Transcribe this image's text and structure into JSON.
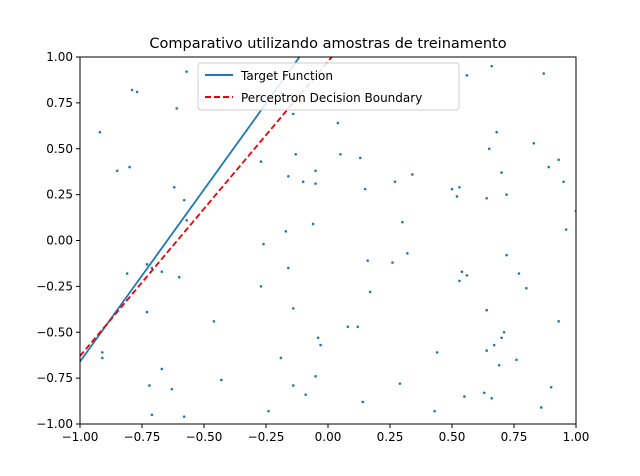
{
  "chart_data": {
    "type": "scatter",
    "title": "Comparativo utilizando amostras de treinamento",
    "xlabel": "",
    "ylabel": "",
    "xlim": [
      -1.0,
      1.0
    ],
    "ylim": [
      -1.0,
      1.0
    ],
    "xticks": [
      "−1.00",
      "−0.75",
      "−0.50",
      "−0.25",
      "0.00",
      "0.25",
      "0.50",
      "0.75",
      "1.00"
    ],
    "yticks": [
      "−1.00",
      "−0.75",
      "−0.50",
      "−0.25",
      "0.00",
      "0.25",
      "0.50",
      "0.75",
      "1.00"
    ],
    "grid": false,
    "legend_position": "top-center",
    "colors": {
      "points": "#1f77b4",
      "target": "#1f77b4",
      "perceptron": "#e8000b"
    },
    "series": [
      {
        "name": "Target Function",
        "kind": "line",
        "style": "solid",
        "points": [
          [
            -1.0,
            -0.66
          ],
          [
            -0.115,
            1.0
          ]
        ]
      },
      {
        "name": "Perceptron Decision Boundary",
        "kind": "line",
        "style": "dashed",
        "points": [
          [
            -1.0,
            -0.63
          ],
          [
            0.015,
            1.0
          ]
        ]
      }
    ],
    "scatter_points": [
      [
        -0.57,
        0.92
      ],
      [
        -0.79,
        0.82
      ],
      [
        -0.77,
        0.81
      ],
      [
        -0.61,
        0.72
      ],
      [
        -0.92,
        0.59
      ],
      [
        -0.85,
        0.38
      ],
      [
        -0.8,
        0.4
      ],
      [
        -0.27,
        0.43
      ],
      [
        -0.13,
        0.47
      ],
      [
        -0.14,
        0.69
      ],
      [
        -0.62,
        0.29
      ],
      [
        -0.58,
        0.22
      ],
      [
        -0.57,
        0.11
      ],
      [
        -0.16,
        0.35
      ],
      [
        -0.1,
        0.32
      ],
      [
        -0.05,
        0.38
      ],
      [
        -0.05,
        0.31
      ],
      [
        0.04,
        0.64
      ],
      [
        0.05,
        0.47
      ],
      [
        0.13,
        0.45
      ],
      [
        0.15,
        0.28
      ],
      [
        0.27,
        0.32
      ],
      [
        0.34,
        0.36
      ],
      [
        0.5,
        0.28
      ],
      [
        0.52,
        0.24
      ],
      [
        0.53,
        0.29
      ],
      [
        0.56,
        0.9
      ],
      [
        0.66,
        0.95
      ],
      [
        0.68,
        0.59
      ],
      [
        0.65,
        0.5
      ],
      [
        0.7,
        0.37
      ],
      [
        0.72,
        0.25
      ],
      [
        0.64,
        0.23
      ],
      [
        0.83,
        0.53
      ],
      [
        0.87,
        0.91
      ],
      [
        0.89,
        0.4
      ],
      [
        0.93,
        0.44
      ],
      [
        0.95,
        0.32
      ],
      [
        0.96,
        0.06
      ],
      [
        1.0,
        0.16
      ],
      [
        -0.17,
        0.05
      ],
      [
        -0.06,
        0.09
      ],
      [
        -0.26,
        -0.02
      ],
      [
        -0.27,
        -0.25
      ],
      [
        -0.16,
        -0.15
      ],
      [
        -0.14,
        -0.37
      ],
      [
        -0.81,
        -0.18
      ],
      [
        -0.73,
        -0.13
      ],
      [
        -0.71,
        -0.15
      ],
      [
        -0.67,
        -0.17
      ],
      [
        -0.6,
        -0.2
      ],
      [
        -0.73,
        -0.39
      ],
      [
        -0.46,
        -0.44
      ],
      [
        -0.04,
        -0.53
      ],
      [
        -0.03,
        -0.57
      ],
      [
        0.08,
        -0.47
      ],
      [
        0.12,
        -0.47
      ],
      [
        0.16,
        -0.11
      ],
      [
        0.17,
        -0.28
      ],
      [
        0.26,
        -0.12
      ],
      [
        0.3,
        0.1
      ],
      [
        0.32,
        -0.07
      ],
      [
        0.53,
        -0.22
      ],
      [
        0.54,
        -0.17
      ],
      [
        0.56,
        -0.19
      ],
      [
        0.72,
        -0.08
      ],
      [
        0.77,
        -0.18
      ],
      [
        0.8,
        -0.26
      ],
      [
        0.64,
        -0.38
      ],
      [
        0.67,
        -0.57
      ],
      [
        0.71,
        -0.5
      ],
      [
        0.7,
        -0.53
      ],
      [
        0.64,
        -0.6
      ],
      [
        0.69,
        -0.68
      ],
      [
        0.76,
        -0.65
      ],
      [
        0.93,
        -0.44
      ],
      [
        0.44,
        -0.61
      ],
      [
        0.9,
        -0.8
      ],
      [
        0.86,
        -0.91
      ],
      [
        0.63,
        -0.83
      ],
      [
        0.66,
        -0.86
      ],
      [
        0.55,
        -0.85
      ],
      [
        0.43,
        -0.93
      ],
      [
        0.29,
        -0.78
      ],
      [
        0.14,
        -0.88
      ],
      [
        -0.05,
        -0.74
      ],
      [
        -0.09,
        -0.84
      ],
      [
        -0.14,
        -0.79
      ],
      [
        -0.19,
        -0.64
      ],
      [
        -0.24,
        -0.93
      ],
      [
        -0.43,
        -0.76
      ],
      [
        -0.58,
        -0.96
      ],
      [
        -0.63,
        -0.81
      ],
      [
        -0.67,
        -0.7
      ],
      [
        -0.72,
        -0.79
      ],
      [
        -0.71,
        -0.95
      ],
      [
        -0.91,
        -0.61
      ],
      [
        -0.91,
        -0.64
      ]
    ]
  }
}
